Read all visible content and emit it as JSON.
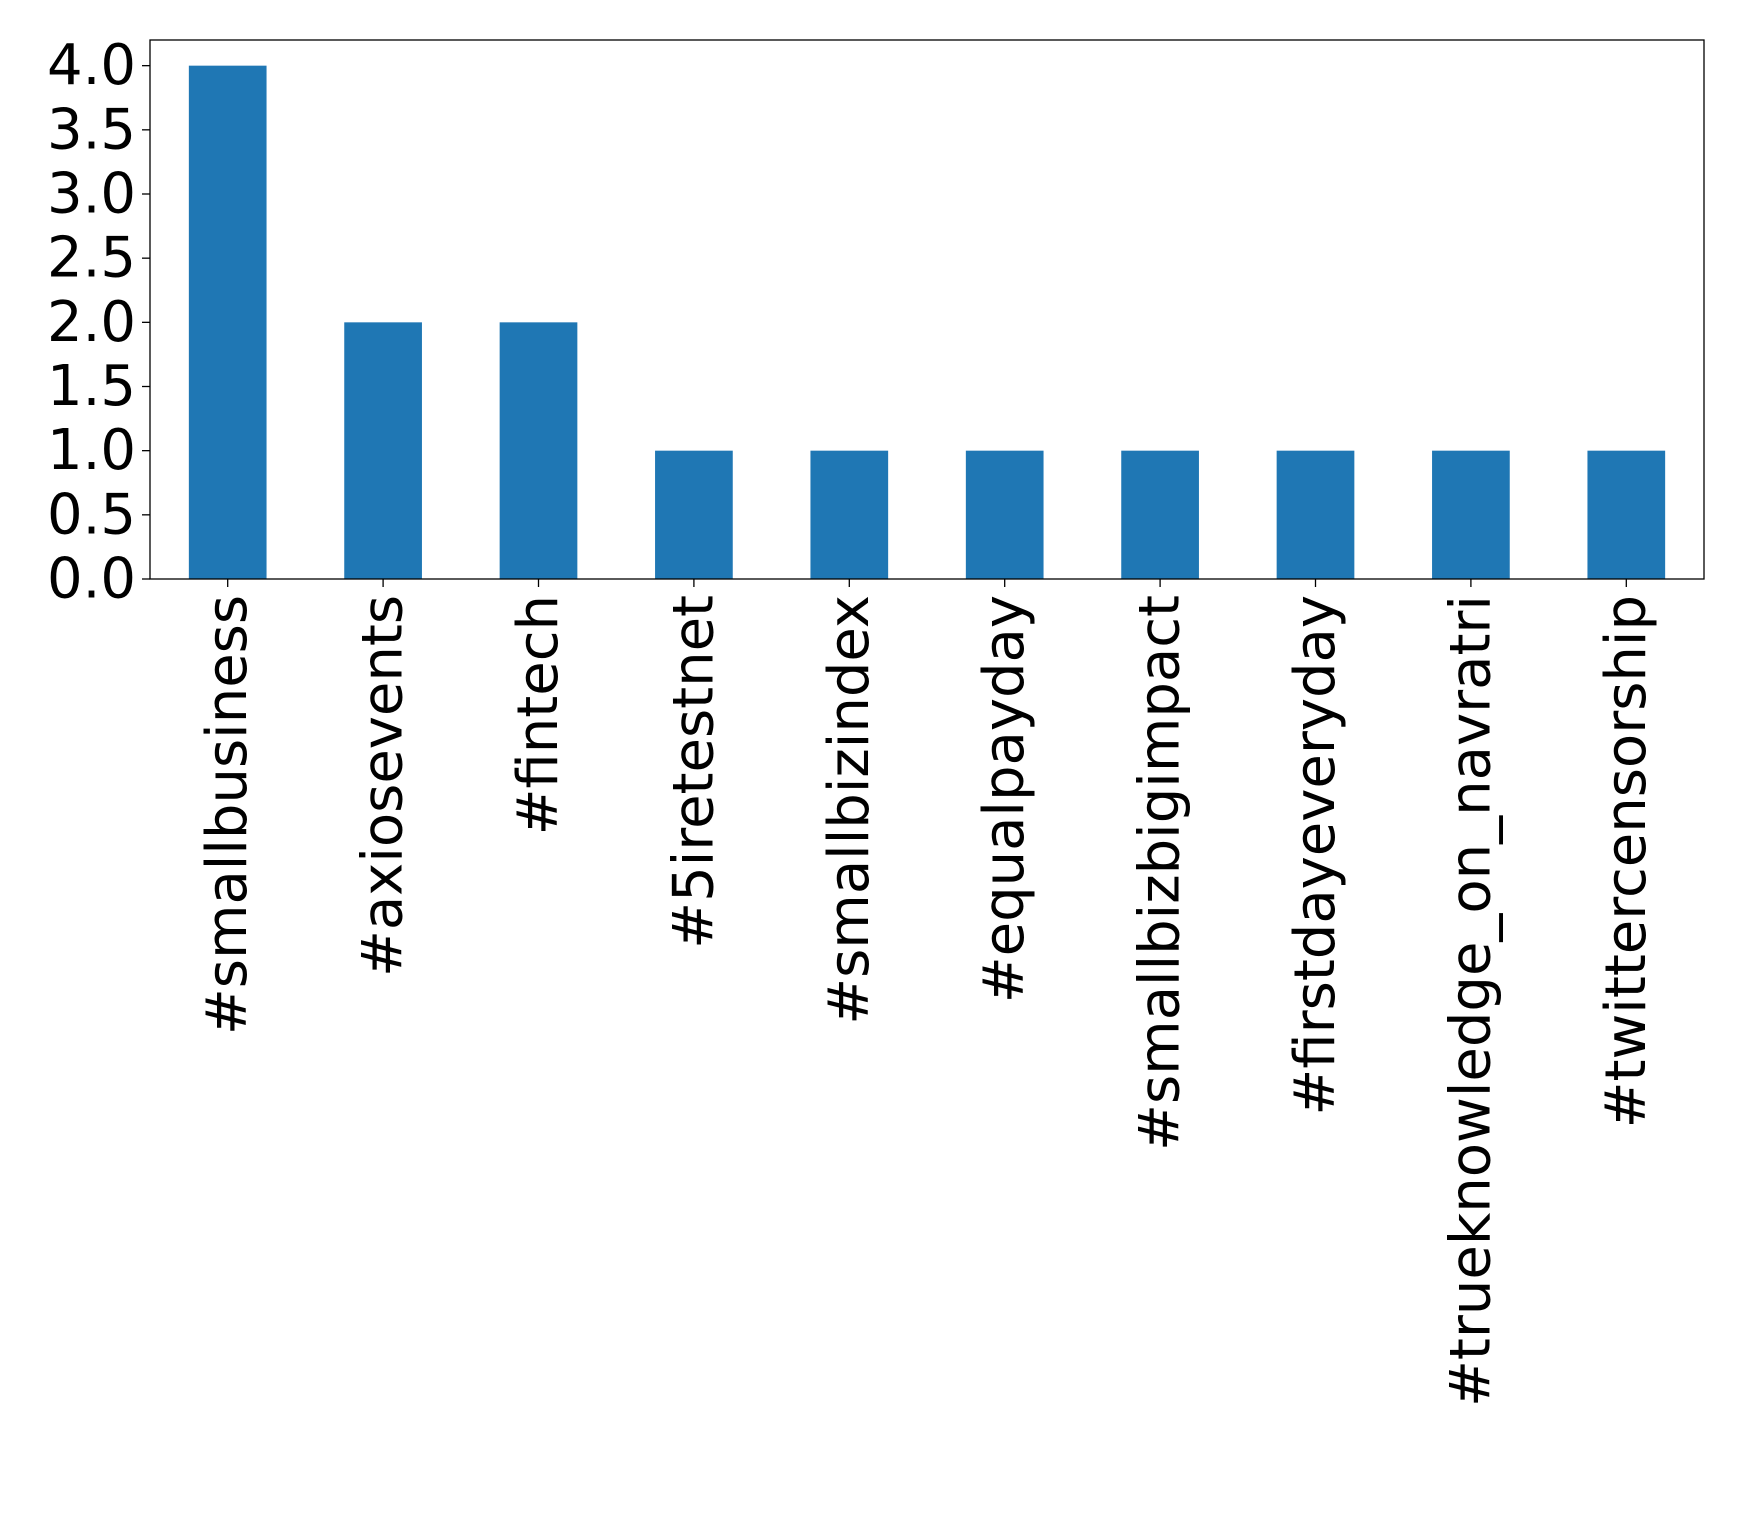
{
  "chart_data": {
    "type": "bar",
    "title": "",
    "xlabel": "",
    "ylabel": "",
    "categories": [
      "#smallbusiness",
      "#axiosevents",
      "#fintech",
      "#5iretestnet",
      "#smallbizindex",
      "#equalpayday",
      "#smallbizbigimpact",
      "#firstdayeveryday",
      "#trueknowledge_on_navratri",
      "#twittercensorship"
    ],
    "values": [
      4,
      2,
      2,
      1,
      1,
      1,
      1,
      1,
      1,
      1
    ],
    "ylim": [
      0,
      4.2
    ],
    "yticks": [
      0.0,
      0.5,
      1.0,
      1.5,
      2.0,
      2.5,
      3.0,
      3.5,
      4.0
    ],
    "ytick_labels": [
      "0.0",
      "0.5",
      "1.0",
      "1.5",
      "2.0",
      "2.5",
      "3.0",
      "3.5",
      "4.0"
    ],
    "bar_color": "#1f77b4",
    "grid": false,
    "legend": "none"
  }
}
